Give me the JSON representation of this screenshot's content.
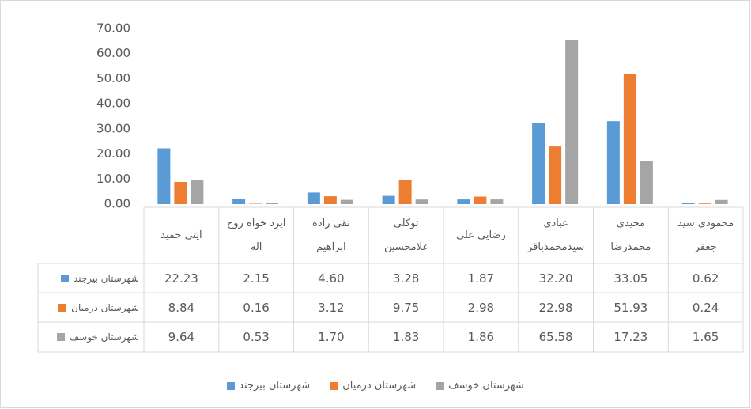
{
  "chart_data": {
    "type": "bar",
    "categories": [
      "آیتی حمید",
      "ایزد خواه روح اله",
      "نقی زاده ابراهیم",
      "توکلی غلامحسین",
      "رضایی علی",
      "عبادی سیدمحمدباقر",
      "مجیدی محمدرضا",
      "محمودی سید جعفر"
    ],
    "series": [
      {
        "name": "شهرستان بیرجند",
        "color": "#5b9bd5",
        "values": [
          22.23,
          2.15,
          4.6,
          3.28,
          1.87,
          32.2,
          33.05,
          0.62
        ],
        "value_labels": [
          "22.23",
          "2.15",
          "4.60",
          "3.28",
          "1.87",
          "32.20",
          "33.05",
          "0.62"
        ]
      },
      {
        "name": "شهرستان درمیان",
        "color": "#ed7d31",
        "values": [
          8.84,
          0.16,
          3.12,
          9.75,
          2.98,
          22.98,
          51.93,
          0.24
        ],
        "value_labels": [
          "8.84",
          "0.16",
          "3.12",
          "9.75",
          "2.98",
          "22.98",
          "51.93",
          "0.24"
        ]
      },
      {
        "name": "شهرستان خوسف",
        "color": "#a5a5a5",
        "values": [
          9.64,
          0.53,
          1.7,
          1.83,
          1.86,
          65.58,
          17.23,
          1.65
        ],
        "value_labels": [
          "9.64",
          "0.53",
          "1.70",
          "1.83",
          "1.86",
          "65.58",
          "17.23",
          "1.65"
        ]
      }
    ],
    "ylim": [
      0,
      70
    ],
    "yticks": [
      {
        "value": 0,
        "label": "0.00"
      },
      {
        "value": 10,
        "label": "10.00"
      },
      {
        "value": 20,
        "label": "20.00"
      },
      {
        "value": 30,
        "label": "30.00"
      },
      {
        "value": 40,
        "label": "40.00"
      },
      {
        "value": 50,
        "label": "50.00"
      },
      {
        "value": 60,
        "label": "60.00"
      },
      {
        "value": 70,
        "label": "70.00"
      }
    ]
  }
}
